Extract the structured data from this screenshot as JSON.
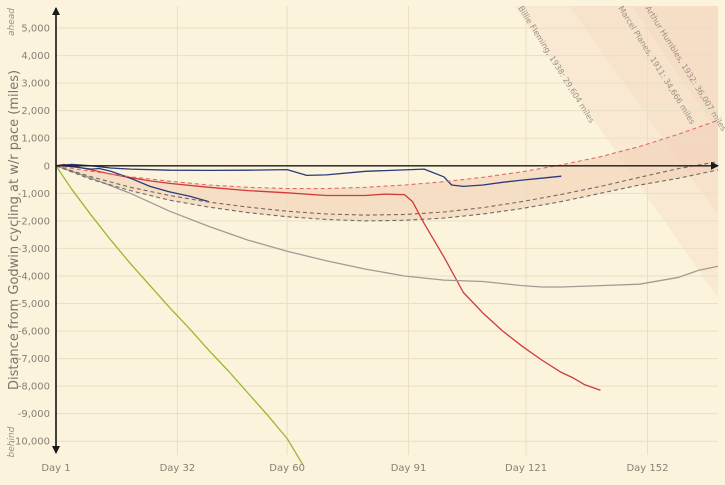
{
  "chart_data": {
    "type": "line",
    "title": "",
    "ylabel": "Distance from Godwin cycling at w/r pace (miles)",
    "y_top_label": "ahead",
    "y_bottom_label": "behind",
    "xlim": [
      1,
      170
    ],
    "ylim": [
      -10500,
      5800
    ],
    "x_ticks": [
      {
        "x": 1,
        "label": "Day 1"
      },
      {
        "x": 32,
        "label": "Day 32"
      },
      {
        "x": 60,
        "label": "Day 60"
      },
      {
        "x": 91,
        "label": "Day 91"
      },
      {
        "x": 121,
        "label": "Day 121"
      },
      {
        "x": 152,
        "label": "Day 152"
      }
    ],
    "y_ticks": [
      {
        "y": 5000,
        "label": "5,000"
      },
      {
        "y": 4000,
        "label": "4,000"
      },
      {
        "y": 3000,
        "label": "3,000"
      },
      {
        "y": 2000,
        "label": "2,000"
      },
      {
        "y": 1000,
        "label": "1,000"
      },
      {
        "y": 0,
        "label": "0"
      },
      {
        "y": -1000,
        "label": "-1,000"
      },
      {
        "y": -2000,
        "label": "-2,000"
      },
      {
        "y": -3000,
        "label": "-3,000"
      },
      {
        "y": -4000,
        "label": "-4,000"
      },
      {
        "y": -5000,
        "label": "-5,000"
      },
      {
        "y": -6000,
        "label": "-6,000"
      },
      {
        "y": -7000,
        "label": "-7,000"
      },
      {
        "y": -8000,
        "label": "-8,000"
      },
      {
        "y": -9000,
        "label": "-9,000"
      },
      {
        "y": -10000,
        "label": "-10,000"
      }
    ],
    "grid": true,
    "band_labels": [
      "Billie Fleming, 1938: 29,604 miles",
      "Marcel Planes, 1911: 34,666 miles",
      "Arthur Humbles, 1932: 36,007 miles"
    ],
    "colors": {
      "background": "#fbf3dc",
      "grid": "#e9dfc3",
      "band": "#f3d2b9",
      "series_green": "#9ab82e",
      "series_red": "#d23a3a",
      "series_navy": "#2b3a78",
      "series_grey": "#a09c93",
      "dashed": "#6e6a64",
      "dashed_red": "#e26a6a"
    },
    "series": [
      {
        "key": "green",
        "color": "#9ab82e",
        "style": "solid",
        "x": [
          1,
          5,
          10,
          15,
          20,
          25,
          30,
          35,
          40,
          45,
          50,
          55,
          60,
          64
        ],
        "y": [
          0,
          -850,
          -1800,
          -2700,
          -3550,
          -4350,
          -5150,
          -5900,
          -6700,
          -7450,
          -8250,
          -9050,
          -9900,
          -10850
        ]
      },
      {
        "key": "red",
        "color": "#d23a3a",
        "style": "solid",
        "x": [
          1,
          3,
          5,
          10,
          15,
          20,
          25,
          30,
          40,
          50,
          60,
          70,
          80,
          85,
          90,
          92,
          95,
          100,
          105,
          110,
          115,
          120,
          125,
          130,
          133,
          136,
          140
        ],
        "y": [
          0,
          50,
          0,
          -150,
          -300,
          -430,
          -550,
          -640,
          -780,
          -900,
          -980,
          -1080,
          -1080,
          -1030,
          -1050,
          -1300,
          -2100,
          -3300,
          -4600,
          -5350,
          -6000,
          -6550,
          -7050,
          -7500,
          -7700,
          -7950,
          -8150
        ]
      },
      {
        "key": "navy",
        "color": "#2b3a78",
        "style": "solid",
        "x": [
          1,
          5,
          10,
          15,
          20,
          30,
          40,
          50,
          60,
          65,
          70,
          80,
          90,
          95,
          100,
          102,
          105,
          110,
          115,
          120,
          125,
          130
        ],
        "y": [
          0,
          50,
          0,
          -80,
          -120,
          -160,
          -170,
          -160,
          -140,
          -350,
          -330,
          -200,
          -150,
          -120,
          -400,
          -700,
          -750,
          -700,
          -600,
          -520,
          -450,
          -380
        ]
      },
      {
        "key": "navy_short",
        "color": "#2b3a78",
        "style": "solid",
        "x": [
          3,
          6,
          10,
          12,
          15,
          20,
          25,
          30,
          35,
          40
        ],
        "y": [
          0,
          -50,
          -120,
          -100,
          -200,
          -450,
          -750,
          -950,
          -1100,
          -1300
        ]
      },
      {
        "key": "grey",
        "color": "#a09c93",
        "style": "solid",
        "x": [
          1,
          10,
          20,
          30,
          40,
          50,
          60,
          70,
          80,
          90,
          100,
          110,
          120,
          125,
          130,
          140,
          150,
          160,
          165,
          170
        ],
        "y": [
          0,
          -450,
          -1000,
          -1650,
          -2200,
          -2700,
          -3100,
          -3450,
          -3750,
          -4000,
          -4150,
          -4200,
          -4350,
          -4400,
          -4400,
          -4350,
          -4300,
          -4050,
          -3800,
          -3650
        ]
      },
      {
        "key": "dashed_a",
        "color": "#6e6a64",
        "style": "dashed",
        "x": [
          1,
          10,
          20,
          30,
          40,
          50,
          60,
          70,
          80,
          90,
          100,
          110,
          120,
          130,
          140,
          150,
          160,
          170
        ],
        "y": [
          0,
          -500,
          -900,
          -1250,
          -1500,
          -1700,
          -1850,
          -1950,
          -2000,
          -1980,
          -1900,
          -1750,
          -1550,
          -1300,
          -1000,
          -700,
          -450,
          -150
        ]
      },
      {
        "key": "dashed_b",
        "color": "#6e6a64",
        "style": "dashed",
        "x": [
          1,
          10,
          20,
          30,
          40,
          50,
          60,
          70,
          80,
          90,
          100,
          110,
          120,
          130,
          140,
          150,
          160,
          170
        ],
        "y": [
          0,
          -400,
          -780,
          -1080,
          -1320,
          -1500,
          -1650,
          -1750,
          -1790,
          -1770,
          -1680,
          -1520,
          -1300,
          -1040,
          -750,
          -420,
          -100,
          150
        ]
      },
      {
        "key": "dashed_red",
        "color": "#e26a6a",
        "style": "dashed",
        "x": [
          1,
          10,
          20,
          30,
          40,
          50,
          60,
          70,
          80,
          90,
          100,
          110,
          120,
          130,
          140,
          150,
          160,
          170
        ],
        "y": [
          0,
          -200,
          -400,
          -560,
          -700,
          -780,
          -830,
          -830,
          -780,
          -700,
          -580,
          -420,
          -220,
          30,
          330,
          700,
          1150,
          1650
        ]
      }
    ]
  }
}
